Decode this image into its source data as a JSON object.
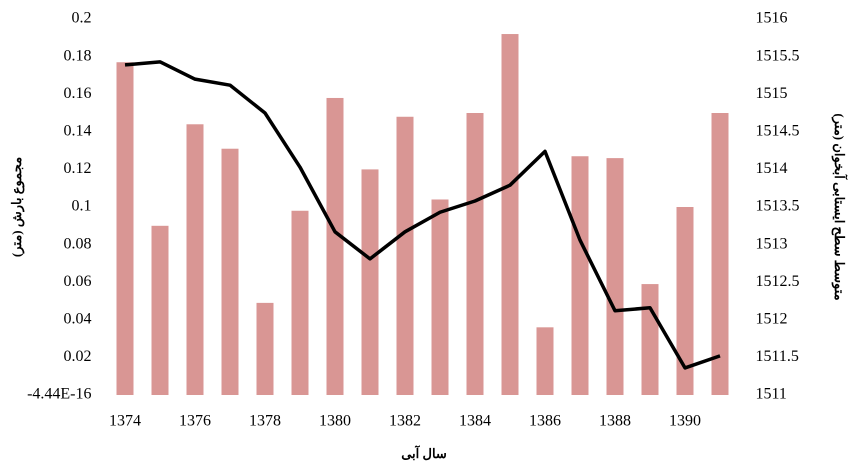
{
  "chart_data": {
    "type": "bar-line",
    "categories": [
      "1374",
      null,
      "1376",
      null,
      "1378",
      null,
      "1380",
      null,
      "1382",
      null,
      "1384",
      null,
      "1386",
      null,
      "1388",
      null,
      "1390",
      null
    ],
    "series": [
      {
        "name": "مجموع بارش (متر)",
        "type": "bar",
        "color": "#d99694",
        "axis": "y",
        "values": [
          0.177,
          0.09,
          0.144,
          0.131,
          0.049,
          0.098,
          0.158,
          0.12,
          0.148,
          0.104,
          0.15,
          0.192,
          0.036,
          0.127,
          0.126,
          0.059,
          0.1,
          0.15
        ]
      },
      {
        "name": "متوسط سطح ایستابی آبخوان (متر)",
        "type": "line",
        "color": "#000000",
        "axis": "y2",
        "values": [
          1515.39,
          1515.43,
          1515.2,
          1515.12,
          1514.75,
          1514.03,
          1513.17,
          1512.81,
          1513.17,
          1513.43,
          1513.58,
          1513.79,
          1514.24,
          1513.06,
          1512.12,
          1512.16,
          1511.36,
          1511.52
        ]
      }
    ],
    "xlabel": "سال آبی",
    "ylabel": "مجموع بارش (متر)",
    "y2label": "متوسط سطح ایستابی آبخوان (متر)",
    "ylim": [
      -4.44e-16,
      0.2
    ],
    "yticks": [
      {
        "value": -4.44e-16,
        "label": "-4.44E-16"
      },
      0.02,
      0.04,
      0.06,
      0.08,
      0.1,
      0.12,
      0.14,
      0.16,
      0.18,
      0.2
    ],
    "y2lim": [
      1511,
      1516
    ],
    "y2ticks": [
      1511,
      1511.5,
      1512,
      1512.5,
      1513,
      1513.5,
      1514,
      1514.5,
      1515,
      1515.5,
      1516
    ]
  }
}
